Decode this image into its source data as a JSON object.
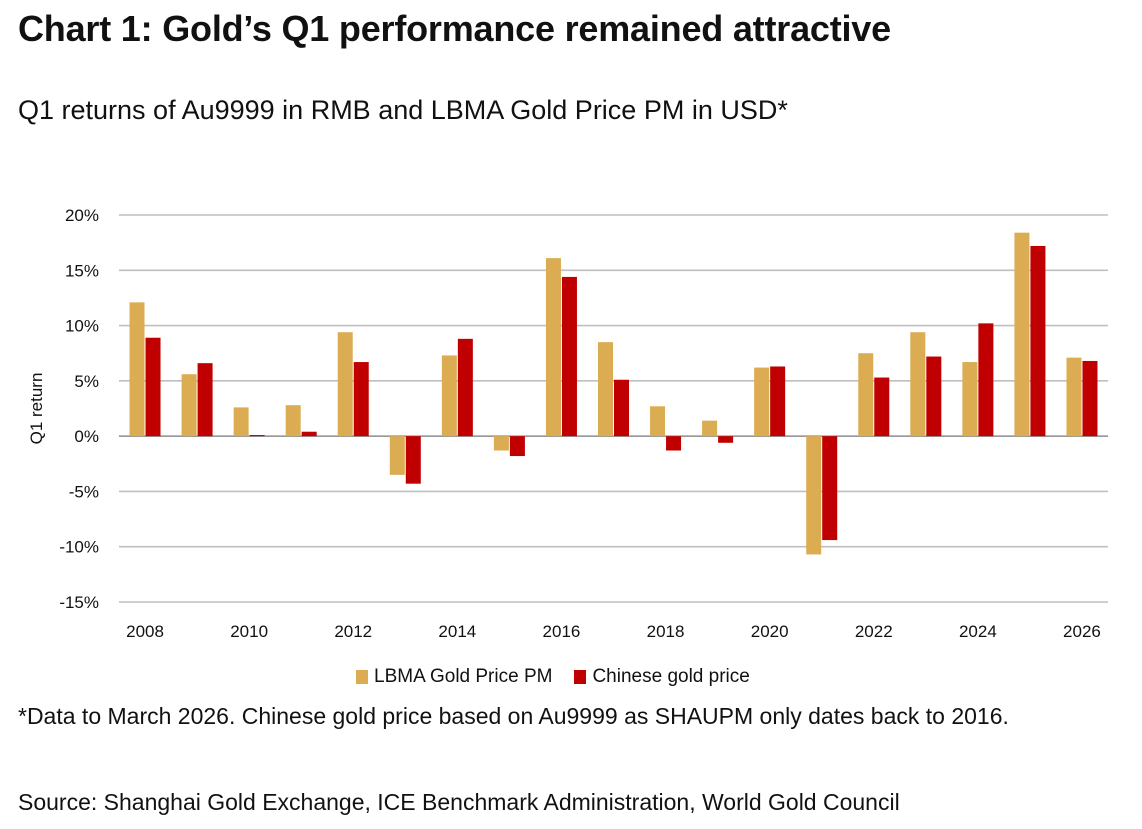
{
  "title": "Chart 1: Gold’s Q1 performance remained attractive",
  "subtitle": "Q1 returns of Au9999 in RMB and LBMA Gold Price PM in USD*",
  "footnote": "*Data to March 2026. Chinese gold price based on Au9999 as SHAUPM only dates back to 2016.",
  "source": "Source: Shanghai Gold Exchange, ICE Benchmark Administration, World Gold Council",
  "colors": {
    "lbma": "#dbac52",
    "chinese": "#c00000",
    "grid": "#bfbfbf",
    "axis": "#999999"
  },
  "legend": {
    "lbma": "LBMA Gold Price PM",
    "chinese": "Chinese gold price"
  },
  "chart_data": {
    "type": "bar",
    "title": "Chart 1: Gold’s Q1 performance remained attractive",
    "subtitle": "Q1 returns of Au9999 in RMB and LBMA Gold Price PM in USD*",
    "xlabel": "",
    "ylabel": "Q1 return",
    "ylim": [
      -15,
      20
    ],
    "yticks": [
      20,
      15,
      10,
      5,
      0,
      -5,
      -10,
      -15
    ],
    "ytick_labels": [
      "20%",
      "15%",
      "10%",
      "5%",
      "0%",
      "-5%",
      "-10%",
      "-15%"
    ],
    "categories": [
      "2008",
      "2009",
      "2010",
      "2011",
      "2012",
      "2013",
      "2014",
      "2015",
      "2016",
      "2017",
      "2018",
      "2019",
      "2020",
      "2021",
      "2022",
      "2023",
      "2024",
      "2025",
      "2026"
    ],
    "xtick_labels": [
      "2008",
      "",
      "2010",
      "",
      "2012",
      "",
      "2014",
      "",
      "2016",
      "",
      "2018",
      "",
      "2020",
      "",
      "2022",
      "",
      "2024",
      "",
      "2026"
    ],
    "legend_position": "bottom",
    "grid": true,
    "series": [
      {
        "name": "LBMA Gold Price PM",
        "color": "#dbac52",
        "values": [
          12.1,
          5.6,
          2.6,
          2.8,
          9.4,
          -3.5,
          7.3,
          -1.3,
          16.1,
          8.5,
          2.7,
          1.4,
          6.2,
          -10.7,
          7.5,
          9.4,
          6.7,
          18.4,
          7.1
        ]
      },
      {
        "name": "Chinese gold price",
        "color": "#c00000",
        "values": [
          8.9,
          6.6,
          0.1,
          0.4,
          6.7,
          -4.3,
          8.8,
          -1.8,
          14.4,
          5.1,
          -1.3,
          -0.6,
          6.3,
          -9.4,
          5.3,
          7.2,
          10.2,
          17.2,
          6.8
        ]
      }
    ]
  }
}
